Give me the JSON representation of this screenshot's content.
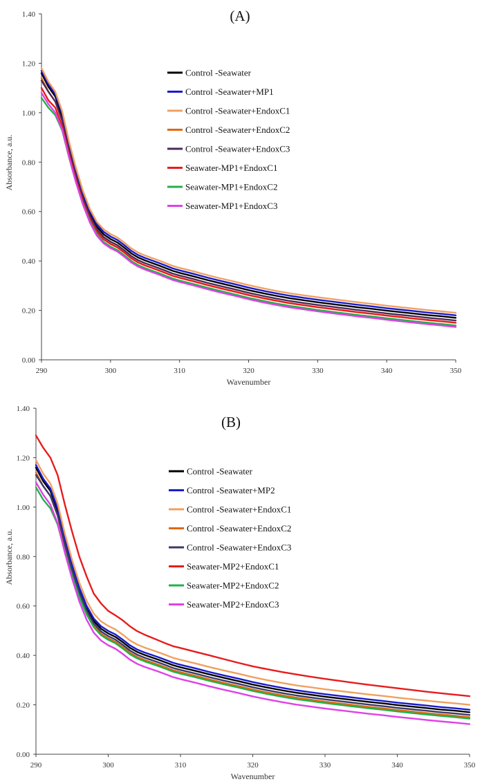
{
  "chart_data": [
    {
      "type": "line",
      "panel": "A",
      "title": "(A)",
      "xlabel": "Wavenumber",
      "ylabel": "Absorbance, a.u.",
      "xlim": [
        290,
        350
      ],
      "ylim": [
        0,
        1.4
      ],
      "xticks": [
        "290",
        "300",
        "310",
        "320",
        "330",
        "340",
        "350"
      ],
      "yticks": [
        "0.00",
        "0.20",
        "0.40",
        "0.60",
        "0.80",
        "1.00",
        "1.20",
        "1.40"
      ],
      "grid": false,
      "legend_position": "top-right",
      "x": [
        290,
        291,
        292,
        293,
        294,
        295,
        296,
        297,
        298,
        299,
        300,
        301,
        302,
        303,
        304,
        305,
        306,
        307,
        308,
        309,
        310,
        312,
        314,
        316,
        318,
        320,
        322,
        324,
        326,
        328,
        330,
        332,
        334,
        336,
        338,
        340,
        342,
        344,
        346,
        348,
        350
      ],
      "series": [
        {
          "name": "Control -Seawater",
          "color": "#000000",
          "values": [
            1.16,
            1.105,
            1.065,
            0.985,
            0.862,
            0.756,
            0.664,
            0.591,
            0.539,
            0.508,
            0.489,
            0.475,
            0.454,
            0.431,
            0.414,
            0.402,
            0.392,
            0.382,
            0.371,
            0.36,
            0.352,
            0.338,
            0.323,
            0.309,
            0.296,
            0.282,
            0.27,
            0.259,
            0.249,
            0.241,
            0.233,
            0.226,
            0.219,
            0.212,
            0.206,
            0.199,
            0.193,
            0.187,
            0.181,
            0.176,
            0.17
          ]
        },
        {
          "name": "Control -Seawater+MP1",
          "color": "#1a1acc",
          "values": [
            1.17,
            1.115,
            1.075,
            0.995,
            0.872,
            0.766,
            0.674,
            0.601,
            0.549,
            0.518,
            0.499,
            0.485,
            0.464,
            0.441,
            0.424,
            0.412,
            0.402,
            0.392,
            0.381,
            0.37,
            0.362,
            0.348,
            0.333,
            0.319,
            0.306,
            0.292,
            0.28,
            0.269,
            0.259,
            0.251,
            0.243,
            0.236,
            0.229,
            0.222,
            0.216,
            0.209,
            0.203,
            0.197,
            0.191,
            0.186,
            0.18
          ]
        },
        {
          "name": "Control -Seawater+EndoxC1",
          "color": "#f0a060",
          "values": [
            1.18,
            1.125,
            1.085,
            1.005,
            0.882,
            0.776,
            0.684,
            0.611,
            0.559,
            0.528,
            0.509,
            0.495,
            0.474,
            0.451,
            0.434,
            0.422,
            0.412,
            0.402,
            0.391,
            0.38,
            0.372,
            0.358,
            0.343,
            0.329,
            0.316,
            0.302,
            0.29,
            0.279,
            0.269,
            0.261,
            0.253,
            0.246,
            0.239,
            0.232,
            0.226,
            0.219,
            0.213,
            0.207,
            0.201,
            0.196,
            0.19
          ]
        },
        {
          "name": "Control -Seawater+EndoxC2",
          "color": "#e06810",
          "values": [
            1.14,
            1.085,
            1.045,
            0.965,
            0.842,
            0.736,
            0.644,
            0.571,
            0.519,
            0.488,
            0.469,
            0.455,
            0.434,
            0.411,
            0.394,
            0.382,
            0.372,
            0.362,
            0.351,
            0.34,
            0.332,
            0.318,
            0.303,
            0.289,
            0.276,
            0.262,
            0.25,
            0.239,
            0.229,
            0.221,
            0.213,
            0.206,
            0.199,
            0.192,
            0.186,
            0.179,
            0.173,
            0.167,
            0.161,
            0.156,
            0.15
          ]
        },
        {
          "name": "Control -Seawater+EndoxC3",
          "color": "#4a2a5a",
          "values": [
            1.13,
            1.085,
            1.045,
            0.968,
            0.848,
            0.744,
            0.654,
            0.582,
            0.529,
            0.497,
            0.478,
            0.464,
            0.443,
            0.42,
            0.403,
            0.391,
            0.381,
            0.371,
            0.36,
            0.349,
            0.341,
            0.327,
            0.312,
            0.298,
            0.285,
            0.271,
            0.259,
            0.248,
            0.238,
            0.23,
            0.222,
            0.215,
            0.208,
            0.201,
            0.195,
            0.188,
            0.182,
            0.176,
            0.17,
            0.165,
            0.159
          ]
        },
        {
          "name": "Seawater-MP1+EndoxC1",
          "color": "#e81c1c",
          "values": [
            1.1,
            1.05,
            1.02,
            0.945,
            0.83,
            0.728,
            0.64,
            0.57,
            0.519,
            0.488,
            0.469,
            0.455,
            0.434,
            0.411,
            0.394,
            0.382,
            0.372,
            0.362,
            0.351,
            0.34,
            0.332,
            0.318,
            0.303,
            0.289,
            0.276,
            0.262,
            0.25,
            0.239,
            0.229,
            0.221,
            0.213,
            0.206,
            0.199,
            0.192,
            0.186,
            0.179,
            0.173,
            0.167,
            0.161,
            0.156,
            0.15
          ]
        },
        {
          "name": "Seawater-MP1+EndoxC2",
          "color": "#22b04a",
          "values": [
            1.06,
            1.02,
            0.99,
            0.928,
            0.818,
            0.718,
            0.631,
            0.561,
            0.509,
            0.477,
            0.458,
            0.444,
            0.423,
            0.4,
            0.383,
            0.371,
            0.361,
            0.351,
            0.34,
            0.329,
            0.321,
            0.307,
            0.292,
            0.278,
            0.265,
            0.251,
            0.239,
            0.228,
            0.218,
            0.21,
            0.202,
            0.195,
            0.188,
            0.181,
            0.175,
            0.168,
            0.162,
            0.156,
            0.15,
            0.145,
            0.139
          ]
        },
        {
          "name": "Seawater-MP1+EndoxC3",
          "color": "#e040e8",
          "values": [
            1.08,
            1.035,
            1.0,
            0.932,
            0.82,
            0.718,
            0.628,
            0.556,
            0.503,
            0.471,
            0.452,
            0.438,
            0.417,
            0.394,
            0.377,
            0.365,
            0.355,
            0.345,
            0.334,
            0.323,
            0.315,
            0.301,
            0.286,
            0.272,
            0.259,
            0.245,
            0.233,
            0.222,
            0.212,
            0.204,
            0.196,
            0.189,
            0.182,
            0.175,
            0.169,
            0.162,
            0.156,
            0.15,
            0.144,
            0.139,
            0.133
          ]
        }
      ]
    },
    {
      "type": "line",
      "panel": "B",
      "title": "(B)",
      "xlabel": "Wavenumber",
      "ylabel": "Absorbance, a.u.",
      "xlim": [
        290,
        350
      ],
      "ylim": [
        0,
        1.4
      ],
      "xticks": [
        "290",
        "300",
        "310",
        "320",
        "330",
        "340",
        "350"
      ],
      "yticks": [
        "0.00",
        "0.20",
        "0.40",
        "0.60",
        "0.80",
        "1.00",
        "1.20",
        "1.40"
      ],
      "grid": false,
      "legend_position": "top-right",
      "x": [
        290,
        291,
        292,
        293,
        294,
        295,
        296,
        297,
        298,
        299,
        300,
        301,
        302,
        303,
        304,
        305,
        306,
        307,
        308,
        309,
        310,
        312,
        314,
        316,
        318,
        320,
        322,
        324,
        326,
        328,
        330,
        332,
        334,
        336,
        338,
        340,
        342,
        344,
        346,
        348,
        350
      ],
      "series": [
        {
          "name": "Control -Seawater",
          "color": "#000000",
          "values": [
            1.16,
            1.105,
            1.065,
            0.985,
            0.862,
            0.756,
            0.664,
            0.591,
            0.539,
            0.508,
            0.489,
            0.475,
            0.454,
            0.431,
            0.414,
            0.402,
            0.392,
            0.382,
            0.371,
            0.36,
            0.352,
            0.338,
            0.323,
            0.309,
            0.296,
            0.282,
            0.27,
            0.259,
            0.249,
            0.241,
            0.233,
            0.226,
            0.219,
            0.212,
            0.206,
            0.199,
            0.193,
            0.187,
            0.181,
            0.176,
            0.17
          ]
        },
        {
          "name": "Control -Seawater+MP2",
          "color": "#1a1acc",
          "values": [
            1.17,
            1.115,
            1.075,
            0.995,
            0.872,
            0.766,
            0.674,
            0.601,
            0.549,
            0.518,
            0.499,
            0.485,
            0.464,
            0.441,
            0.424,
            0.412,
            0.402,
            0.392,
            0.381,
            0.37,
            0.362,
            0.348,
            0.333,
            0.319,
            0.306,
            0.292,
            0.28,
            0.269,
            0.259,
            0.251,
            0.243,
            0.236,
            0.229,
            0.222,
            0.216,
            0.209,
            0.203,
            0.197,
            0.191,
            0.186,
            0.18
          ]
        },
        {
          "name": "Control -Seawater+EndoxC1",
          "color": "#f0a060",
          "values": [
            1.19,
            1.135,
            1.095,
            1.015,
            0.892,
            0.786,
            0.694,
            0.621,
            0.569,
            0.538,
            0.519,
            0.505,
            0.484,
            0.461,
            0.444,
            0.432,
            0.422,
            0.412,
            0.401,
            0.39,
            0.382,
            0.368,
            0.353,
            0.339,
            0.326,
            0.312,
            0.3,
            0.289,
            0.279,
            0.271,
            0.263,
            0.256,
            0.249,
            0.242,
            0.236,
            0.229,
            0.223,
            0.217,
            0.211,
            0.206,
            0.2
          ]
        },
        {
          "name": "Control -Seawater+EndoxC2",
          "color": "#e06810",
          "values": [
            1.14,
            1.085,
            1.045,
            0.965,
            0.842,
            0.736,
            0.644,
            0.571,
            0.519,
            0.488,
            0.469,
            0.455,
            0.434,
            0.411,
            0.394,
            0.382,
            0.372,
            0.362,
            0.351,
            0.34,
            0.332,
            0.318,
            0.303,
            0.289,
            0.276,
            0.262,
            0.25,
            0.239,
            0.229,
            0.221,
            0.213,
            0.206,
            0.199,
            0.192,
            0.186,
            0.179,
            0.173,
            0.167,
            0.161,
            0.156,
            0.15
          ]
        },
        {
          "name": "Control -Seawater+EndoxC3",
          "color": "#3a3a6a",
          "values": [
            1.13,
            1.085,
            1.045,
            0.968,
            0.848,
            0.744,
            0.654,
            0.582,
            0.529,
            0.497,
            0.478,
            0.464,
            0.443,
            0.42,
            0.403,
            0.391,
            0.381,
            0.371,
            0.36,
            0.349,
            0.341,
            0.327,
            0.312,
            0.298,
            0.285,
            0.271,
            0.259,
            0.248,
            0.238,
            0.23,
            0.222,
            0.215,
            0.208,
            0.201,
            0.195,
            0.188,
            0.182,
            0.176,
            0.17,
            0.165,
            0.159
          ]
        },
        {
          "name": "Seawater-MP2+EndoxC1",
          "color": "#e81c1c",
          "values": [
            1.29,
            1.24,
            1.2,
            1.13,
            1.01,
            0.9,
            0.8,
            0.72,
            0.65,
            0.61,
            0.58,
            0.562,
            0.542,
            0.518,
            0.498,
            0.484,
            0.472,
            0.46,
            0.448,
            0.437,
            0.43,
            0.415,
            0.4,
            0.385,
            0.37,
            0.356,
            0.344,
            0.333,
            0.323,
            0.314,
            0.305,
            0.297,
            0.289,
            0.281,
            0.274,
            0.267,
            0.26,
            0.253,
            0.247,
            0.241,
            0.235
          ]
        },
        {
          "name": "Seawater-MP2+EndoxC2",
          "color": "#22b04a",
          "values": [
            1.08,
            1.03,
            0.995,
            0.93,
            0.82,
            0.722,
            0.636,
            0.566,
            0.514,
            0.482,
            0.463,
            0.449,
            0.428,
            0.405,
            0.388,
            0.376,
            0.366,
            0.356,
            0.345,
            0.334,
            0.326,
            0.312,
            0.297,
            0.283,
            0.27,
            0.256,
            0.244,
            0.233,
            0.223,
            0.215,
            0.207,
            0.2,
            0.193,
            0.186,
            0.18,
            0.173,
            0.167,
            0.161,
            0.155,
            0.15,
            0.144
          ]
        },
        {
          "name": "Seawater-MP2+EndoxC3",
          "color": "#e040e8",
          "values": [
            1.1,
            1.05,
            1.01,
            0.935,
            0.815,
            0.71,
            0.618,
            0.545,
            0.492,
            0.46,
            0.441,
            0.427,
            0.406,
            0.383,
            0.366,
            0.354,
            0.344,
            0.334,
            0.323,
            0.312,
            0.304,
            0.29,
            0.275,
            0.261,
            0.248,
            0.234,
            0.222,
            0.211,
            0.201,
            0.193,
            0.185,
            0.178,
            0.171,
            0.164,
            0.158,
            0.151,
            0.145,
            0.139,
            0.133,
            0.128,
            0.122
          ]
        }
      ]
    }
  ]
}
